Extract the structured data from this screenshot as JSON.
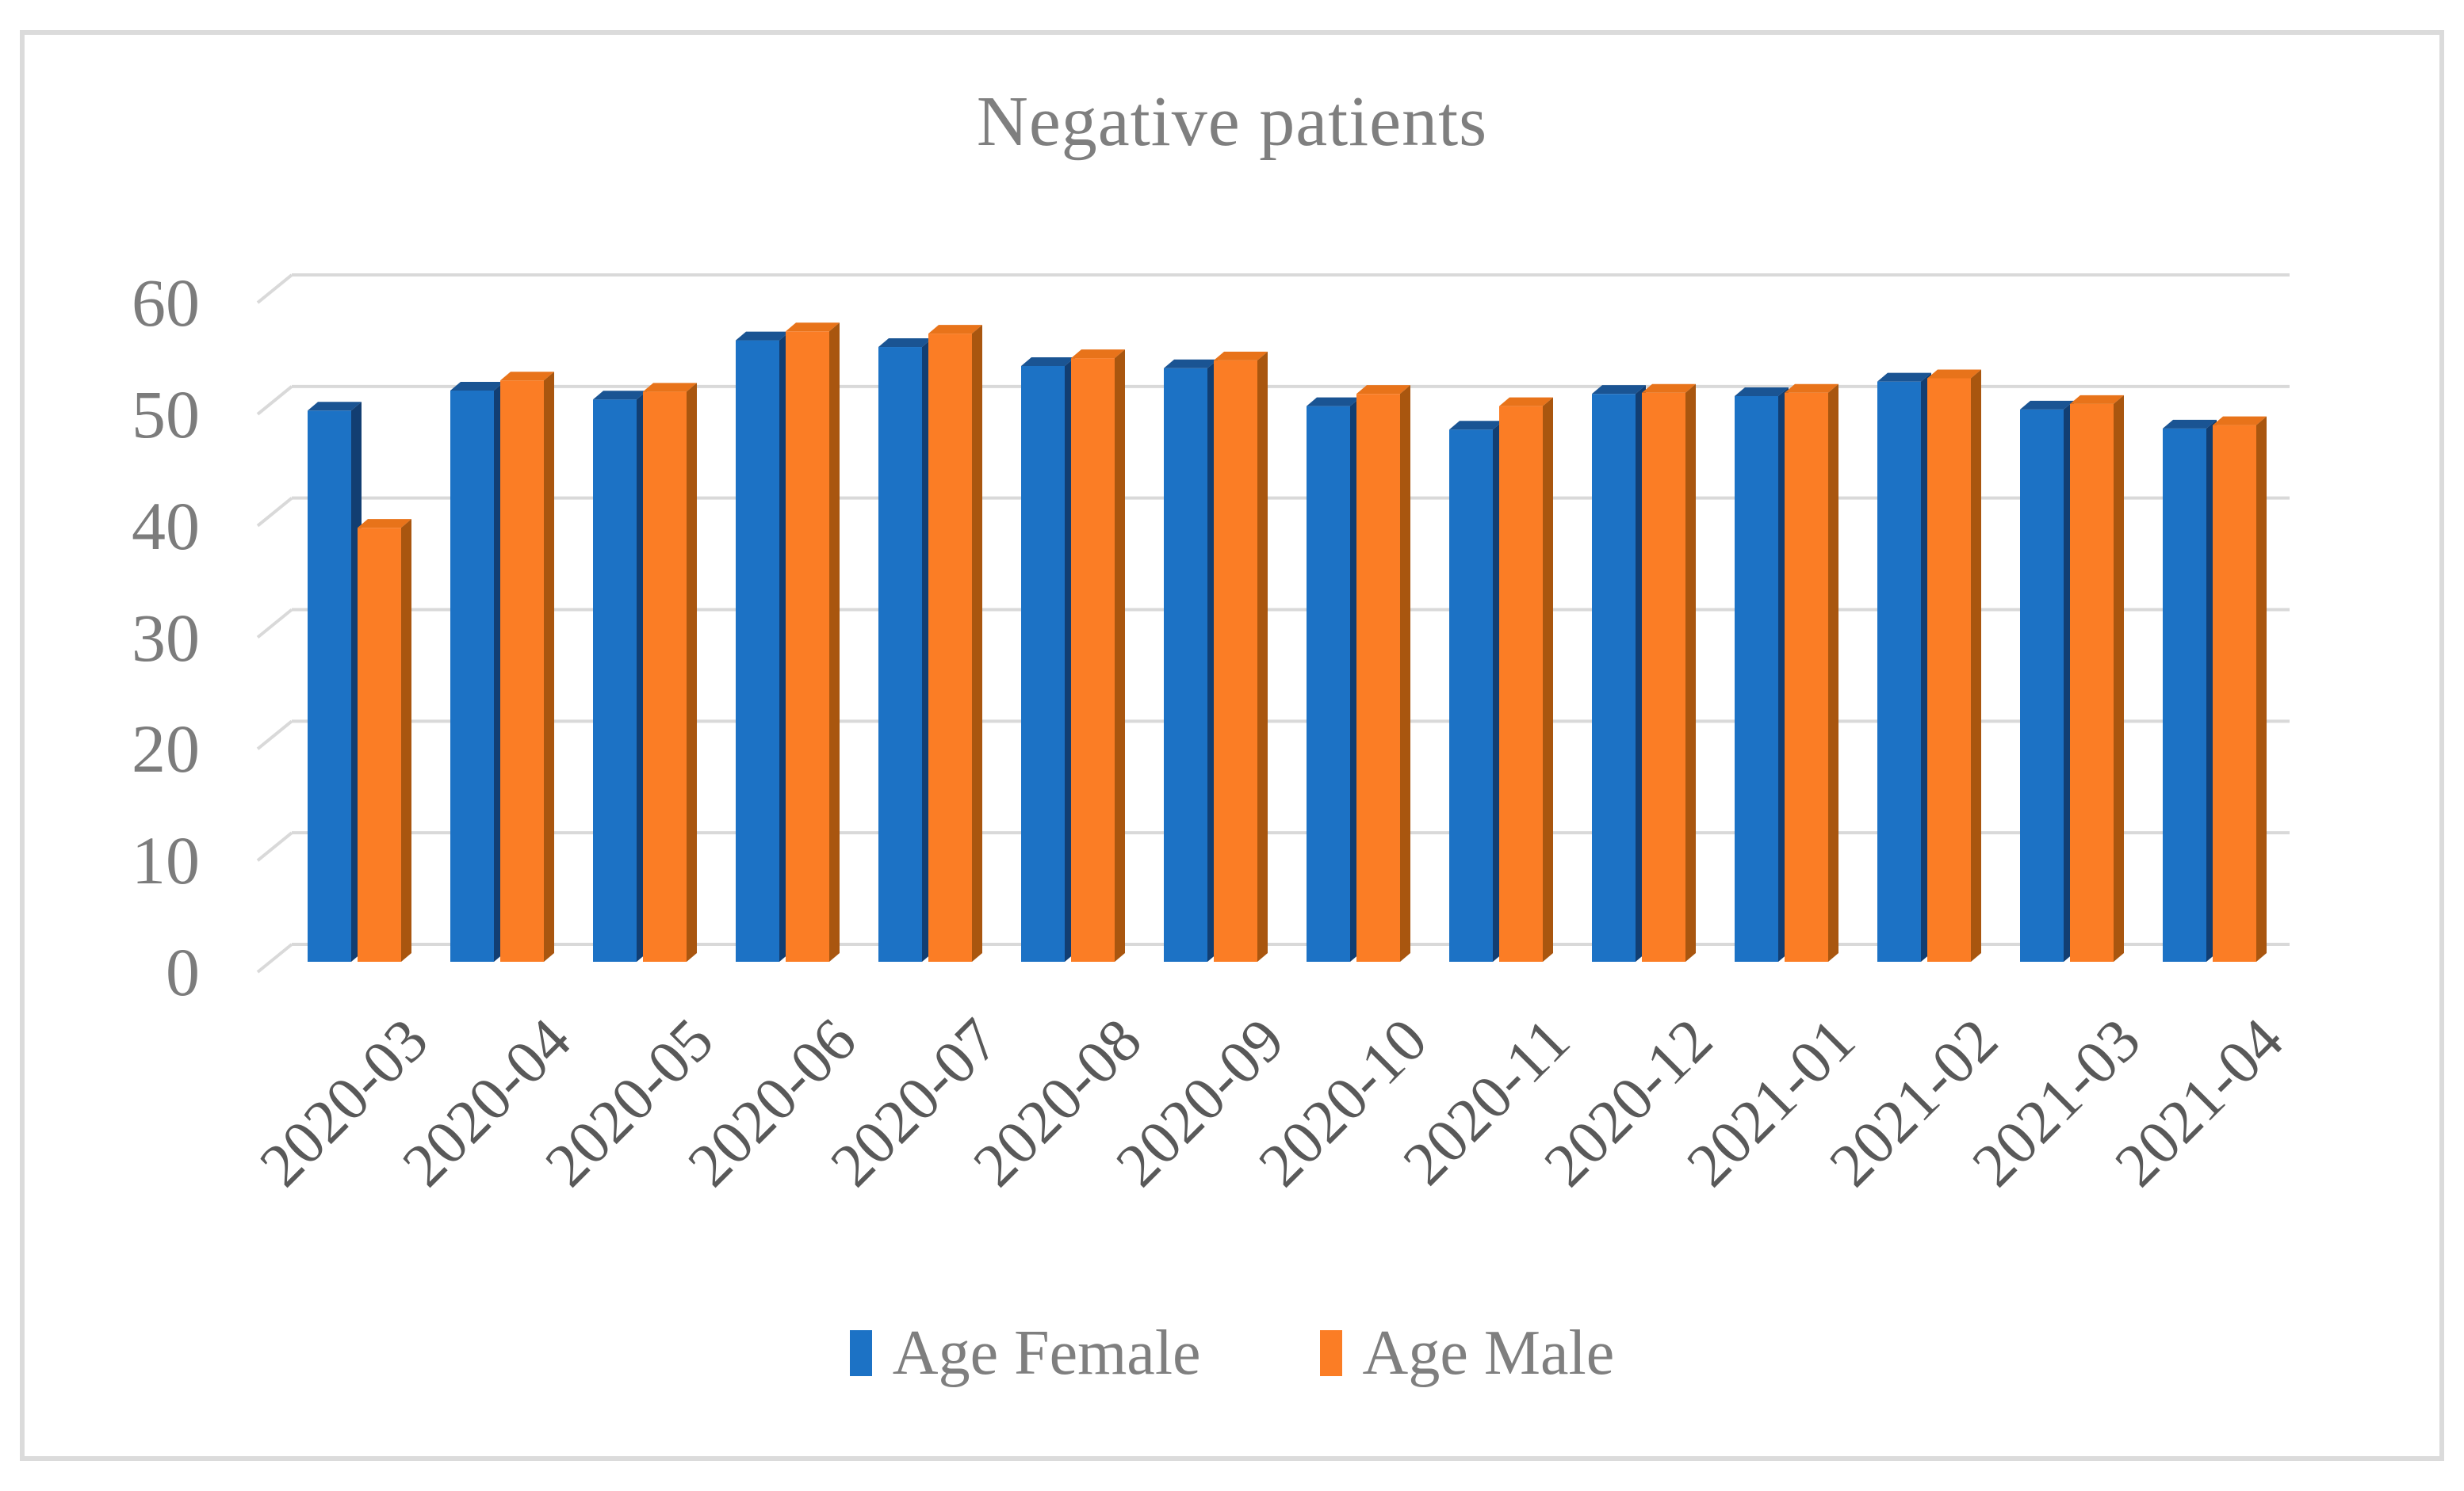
{
  "figure": {
    "title": "Negative patients"
  },
  "colors": {
    "female_front": "#1C72C5",
    "female_top": "#1A5493",
    "female_side": "#123E72",
    "male_front": "#FB7D25",
    "male_top": "#E8731A",
    "male_side": "#A9560F",
    "gridline": "#D9D9D9",
    "frame_border": "#DBDBDB",
    "title_text": "#7F7F7F",
    "y_axis_text": "#7C7C7C",
    "x_axis_text": "#595959",
    "legend_text": "#7F7F7F"
  },
  "chart_data": {
    "type": "bar",
    "style": "3d-clustered-column",
    "title": "Negative patients",
    "categories": [
      "2020-03",
      "2020-04",
      "2020-05",
      "2020-06",
      "2020-07",
      "2020-08",
      "2020-09",
      "2020-10",
      "2020-11",
      "2020-12",
      "2021-01",
      "2021-02",
      "2021-03",
      "2021-04"
    ],
    "series": [
      {
        "name": "Age Female",
        "color": "#1C72C5",
        "values": [
          49.4,
          51.2,
          50.4,
          55.7,
          55.1,
          53.4,
          53.2,
          49.8,
          47.7,
          50.9,
          50.7,
          52.0,
          49.5,
          47.8
        ]
      },
      {
        "name": "Age Male",
        "color": "#FB7D25",
        "values": [
          38.9,
          52.1,
          51.1,
          56.5,
          56.3,
          54.1,
          53.9,
          50.9,
          49.8,
          51.0,
          51.0,
          52.3,
          50.0,
          48.1
        ]
      }
    ],
    "xlabel": "",
    "ylabel": "",
    "ylim": [
      0,
      60
    ],
    "yticks": [
      0,
      10,
      20,
      30,
      40,
      50,
      60
    ],
    "grid": true,
    "legend_position": "bottom"
  }
}
